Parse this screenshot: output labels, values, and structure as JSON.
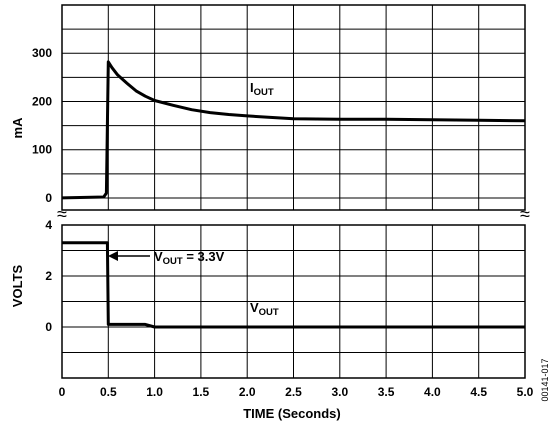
{
  "chart_data": [
    {
      "type": "line",
      "ylabel": "mA",
      "ylim": [
        -25,
        400
      ],
      "yticks": [
        "0",
        "100",
        "200",
        "300"
      ],
      "grid": true,
      "series": [
        {
          "name_parts": [
            "I",
            "OUT"
          ],
          "x": [
            0,
            0.45,
            0.48,
            0.5,
            0.54,
            0.6,
            0.7,
            0.8,
            0.9,
            1.0,
            1.2,
            1.4,
            1.6,
            1.8,
            2.0,
            2.25,
            2.5,
            3.0,
            3.5,
            4.0,
            4.5,
            5.0
          ],
          "y": [
            0,
            2,
            10,
            282,
            270,
            255,
            238,
            222,
            211,
            202,
            192,
            183,
            177,
            173,
            170,
            167,
            164,
            163,
            163,
            162,
            161,
            160
          ]
        }
      ]
    },
    {
      "type": "line",
      "ylabel": "VOLTS",
      "ylim": [
        -2,
        4
      ],
      "yticks": [
        "0",
        "2",
        "4"
      ],
      "xlabel": "TIME (Seconds)",
      "xlim": [
        0,
        5.0
      ],
      "xticks": [
        "0",
        "0.5",
        "1.0",
        "1.5",
        "2.0",
        "2.5",
        "3.0",
        "3.5",
        "4.0",
        "4.5",
        "5.0"
      ],
      "grid": true,
      "series": [
        {
          "name_parts": [
            "V",
            "OUT"
          ],
          "x": [
            0,
            0.49,
            0.49,
            0.5,
            0.9,
            1.0,
            5.0
          ],
          "y": [
            3.3,
            3.3,
            3.3,
            0.1,
            0.1,
            0.0,
            0.0
          ]
        }
      ],
      "annotation": {
        "main": "V",
        "sub": "OUT",
        "suffix": " = 3.3V"
      }
    }
  ],
  "figure_id": "00141-017",
  "break_symbol": "≈"
}
